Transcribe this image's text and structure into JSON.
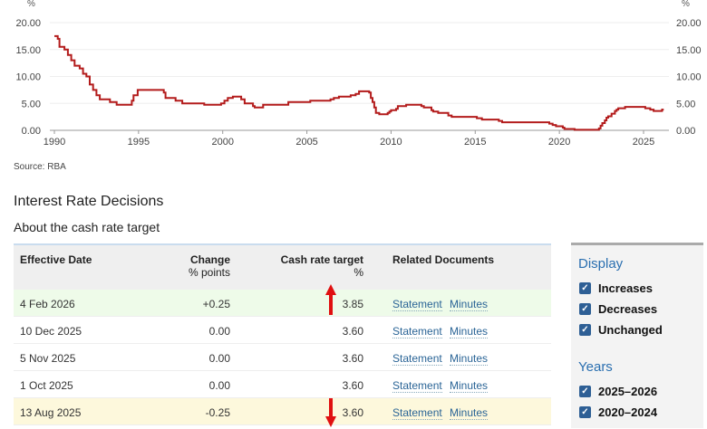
{
  "chart_data": {
    "type": "line",
    "ylabel_left": "%",
    "ylabel_right": "%",
    "ylim": [
      0,
      20
    ],
    "xlim": [
      1990,
      2026.2
    ],
    "yticks": [
      "0.00",
      "5.00",
      "10.00",
      "15.00",
      "20.00"
    ],
    "xticks": [
      "1990",
      "1995",
      "2000",
      "2005",
      "2010",
      "2015",
      "2020",
      "2025"
    ],
    "grid": true,
    "color": "#b31b1b",
    "series": [
      {
        "points": [
          [
            1990.0,
            17.5
          ],
          [
            1990.2,
            17
          ],
          [
            1990.3,
            15.5
          ],
          [
            1990.6,
            15
          ],
          [
            1990.8,
            14
          ],
          [
            1991.0,
            13
          ],
          [
            1991.2,
            12
          ],
          [
            1991.5,
            11.5
          ],
          [
            1991.7,
            10.5
          ],
          [
            1991.9,
            10
          ],
          [
            1992.1,
            8.5
          ],
          [
            1992.3,
            7.5
          ],
          [
            1992.5,
            6.5
          ],
          [
            1992.7,
            5.75
          ],
          [
            1993.3,
            5.25
          ],
          [
            1993.7,
            4.75
          ],
          [
            1994.6,
            5.5
          ],
          [
            1994.7,
            6.5
          ],
          [
            1994.95,
            7.5
          ],
          [
            1996.5,
            7.0
          ],
          [
            1996.6,
            6.0
          ],
          [
            1997.2,
            5.5
          ],
          [
            1997.6,
            5.0
          ],
          [
            1998.9,
            4.75
          ],
          [
            1999.9,
            5.0
          ],
          [
            2000.1,
            5.5
          ],
          [
            2000.3,
            6.0
          ],
          [
            2000.6,
            6.25
          ],
          [
            2001.1,
            5.75
          ],
          [
            2001.3,
            5.0
          ],
          [
            2001.8,
            4.5
          ],
          [
            2001.9,
            4.25
          ],
          [
            2002.4,
            4.75
          ],
          [
            2003.9,
            5.25
          ],
          [
            2005.2,
            5.5
          ],
          [
            2006.4,
            5.75
          ],
          [
            2006.6,
            6.0
          ],
          [
            2006.9,
            6.25
          ],
          [
            2007.6,
            6.5
          ],
          [
            2007.9,
            6.75
          ],
          [
            2008.1,
            7.25
          ],
          [
            2008.7,
            7.0
          ],
          [
            2008.8,
            6.0
          ],
          [
            2008.9,
            5.25
          ],
          [
            2009.0,
            4.25
          ],
          [
            2009.1,
            3.25
          ],
          [
            2009.3,
            3.0
          ],
          [
            2009.8,
            3.25
          ],
          [
            2009.9,
            3.5
          ],
          [
            2010.0,
            3.75
          ],
          [
            2010.3,
            4.0
          ],
          [
            2010.4,
            4.5
          ],
          [
            2010.9,
            4.75
          ],
          [
            2011.8,
            4.5
          ],
          [
            2011.95,
            4.25
          ],
          [
            2012.4,
            3.75
          ],
          [
            2012.5,
            3.5
          ],
          [
            2012.8,
            3.25
          ],
          [
            2013.4,
            2.75
          ],
          [
            2013.6,
            2.5
          ],
          [
            2015.1,
            2.25
          ],
          [
            2015.4,
            2.0
          ],
          [
            2016.4,
            1.75
          ],
          [
            2016.6,
            1.5
          ],
          [
            2019.4,
            1.25
          ],
          [
            2019.6,
            1.0
          ],
          [
            2019.8,
            0.75
          ],
          [
            2020.2,
            0.5
          ],
          [
            2020.3,
            0.25
          ],
          [
            2020.9,
            0.1
          ],
          [
            2022.35,
            0.35
          ],
          [
            2022.45,
            0.85
          ],
          [
            2022.55,
            1.35
          ],
          [
            2022.7,
            1.85
          ],
          [
            2022.8,
            2.35
          ],
          [
            2022.9,
            2.6
          ],
          [
            2023.1,
            3.1
          ],
          [
            2023.3,
            3.6
          ],
          [
            2023.4,
            3.85
          ],
          [
            2023.5,
            4.1
          ],
          [
            2023.9,
            4.35
          ],
          [
            2025.1,
            4.1
          ],
          [
            2025.4,
            3.85
          ],
          [
            2025.6,
            3.6
          ],
          [
            2026.1,
            3.85
          ],
          [
            2026.2,
            3.85
          ]
        ]
      }
    ]
  },
  "source": "Source: RBA",
  "section_title": "Interest Rate Decisions",
  "section_subtitle": "About the cash rate target",
  "table": {
    "headers": {
      "date": "Effective Date",
      "change": "Change",
      "change_unit": "% points",
      "target": "Cash rate target",
      "target_unit": "%",
      "docs": "Related Documents"
    },
    "rows": [
      {
        "date": "4 Feb 2026",
        "change": "+0.25",
        "target": "3.85",
        "statement": "Statement",
        "minutes": "Minutes",
        "bg": "#eefbe9",
        "arrow": "up"
      },
      {
        "date": "10 Dec 2025",
        "change": "0.00",
        "target": "3.60",
        "statement": "Statement",
        "minutes": "Minutes",
        "bg": "#ffffff"
      },
      {
        "date": "5 Nov 2025",
        "change": "0.00",
        "target": "3.60",
        "statement": "Statement",
        "minutes": "Minutes",
        "bg": "#ffffff"
      },
      {
        "date": "1 Oct 2025",
        "change": "0.00",
        "target": "3.60",
        "statement": "Statement",
        "minutes": "Minutes",
        "bg": "#ffffff"
      },
      {
        "date": "13 Aug 2025",
        "change": "-0.25",
        "target": "3.60",
        "statement": "Statement",
        "minutes": "Minutes",
        "bg": "#fdf8dc",
        "arrow": "down"
      }
    ]
  },
  "panel": {
    "display_title": "Display",
    "display": [
      {
        "label": "Increases",
        "checked": true
      },
      {
        "label": "Decreases",
        "checked": true
      },
      {
        "label": "Unchanged",
        "checked": true
      }
    ],
    "years_title": "Years",
    "years": [
      {
        "label": "2025–2026",
        "checked": true
      },
      {
        "label": "2020–2024",
        "checked": true
      }
    ]
  }
}
